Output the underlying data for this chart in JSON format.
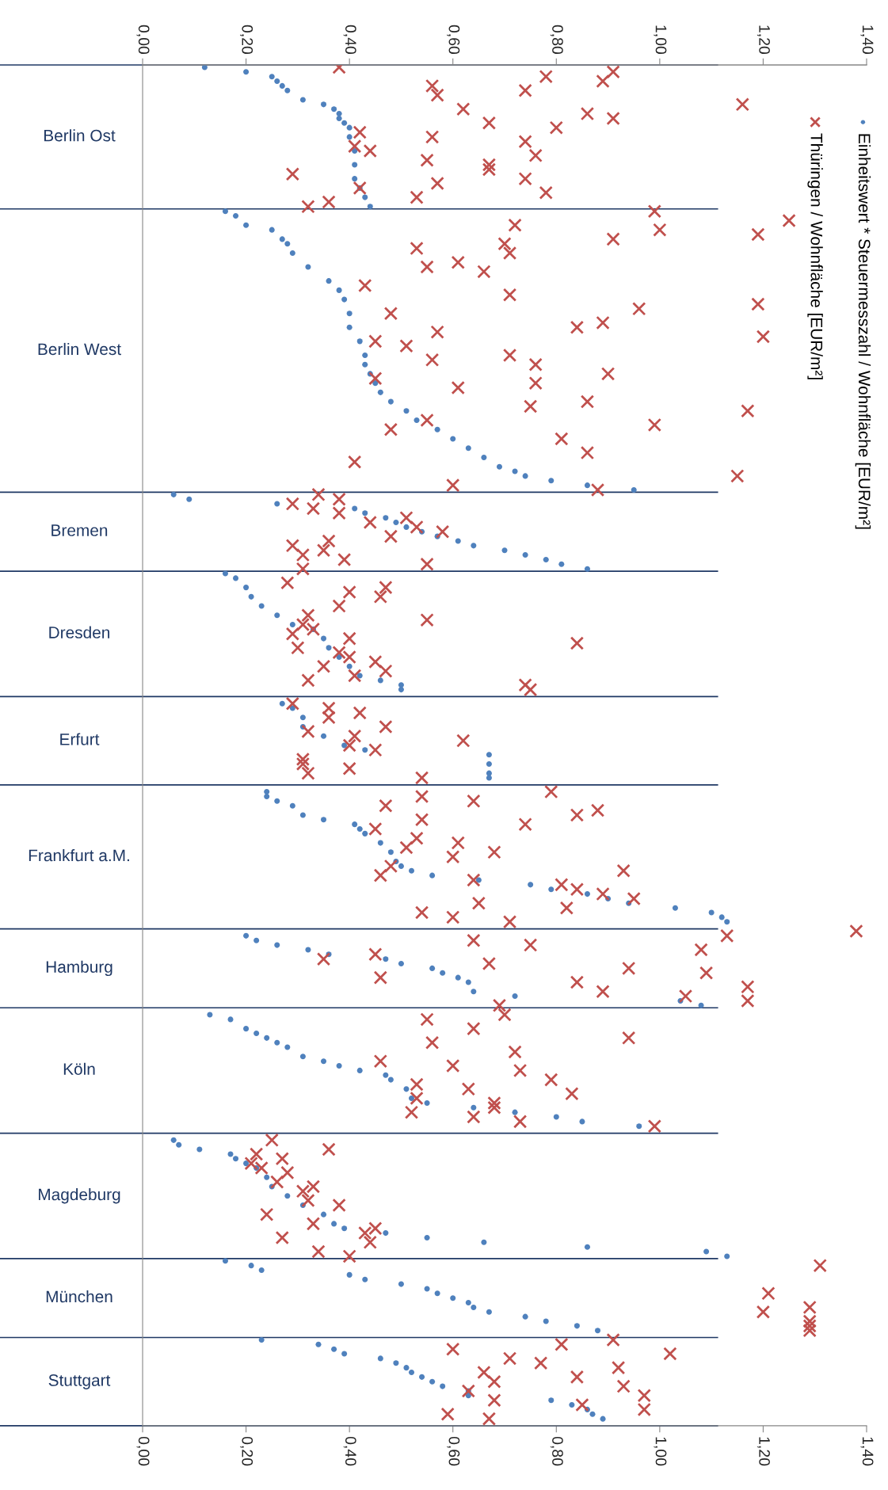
{
  "chart_data": {
    "type": "scatter",
    "orientation": "horizontal",
    "legend": "top right",
    "tick_labels": "x",
    "xlim": [
      0,
      1.4
    ],
    "xticks": [
      {
        "value": 0,
        "label": "0,00"
      },
      {
        "value": 0.2,
        "label": "0,20"
      },
      {
        "value": 0.4,
        "label": "0,40"
      },
      {
        "value": 0.6,
        "label": "0,60"
      },
      {
        "value": 0.8,
        "label": "0,80"
      },
      {
        "value": 1.0,
        "label": "1,00"
      },
      {
        "value": 1.2,
        "label": "1,20"
      },
      {
        "value": 1.4,
        "label": "1,40"
      }
    ],
    "x2lim": [
      0,
      1.4
    ],
    "x2ticks": [
      {
        "value": 0,
        "label": "0,00"
      },
      {
        "value": 0.2,
        "label": "0,20"
      },
      {
        "value": 0.4,
        "label": "0,40"
      },
      {
        "value": 0.6,
        "label": "0,60"
      },
      {
        "value": 0.8,
        "label": "0,80"
      },
      {
        "value": 1.0,
        "label": "1,00"
      },
      {
        "value": 1.2,
        "label": "1,20"
      },
      {
        "value": 1.4,
        "label": "1,40"
      }
    ],
    "categories": [
      null,
      null,
      null,
      null,
      null,
      null,
      null,
      null,
      null,
      null,
      null,
      null,
      null,
      null,
      null,
      "Berlin Ost",
      null,
      null,
      null,
      null,
      null,
      null,
      null,
      null,
      null,
      null,
      null,
      null,
      null,
      null,
      null,
      null,
      null,
      null,
      null,
      null,
      null,
      null,
      null,
      null,
      null,
      null,
      null,
      null,
      null,
      null,
      null,
      null,
      null,
      null,
      null,
      null,
      null,
      null,
      null,
      null,
      null,
      null,
      null,
      null,
      null,
      "Berlin West",
      null,
      null,
      null,
      null,
      null,
      null,
      null,
      null,
      null,
      null,
      null,
      null,
      null,
      null,
      null,
      null,
      null,
      null,
      null,
      null,
      null,
      null,
      null,
      null,
      null,
      null,
      null,
      null,
      null,
      null,
      null,
      null,
      null,
      null,
      null,
      null,
      null,
      null,
      "Bremen",
      null,
      null,
      null,
      null,
      null,
      null,
      null,
      null,
      null,
      null,
      null,
      null,
      null,
      null,
      null,
      null,
      null,
      null,
      null,
      null,
      null,
      "Dresden",
      null,
      null,
      null,
      null,
      null,
      null,
      null,
      null,
      null,
      null,
      null,
      null,
      null,
      null,
      null,
      null,
      null,
      null,
      null,
      null,
      null,
      null,
      "Erfurt",
      null,
      null,
      null,
      null,
      null,
      null,
      null,
      null,
      null,
      null,
      null,
      null,
      null,
      null,
      null,
      null,
      null,
      null,
      null,
      null,
      null,
      null,
      null,
      null,
      "Frankfurt a.M.",
      null,
      null,
      null,
      null,
      null,
      null,
      null,
      null,
      null,
      null,
      null,
      null,
      null,
      null,
      null,
      null,
      null,
      null,
      null,
      null,
      null,
      null,
      null,
      "Hamburg",
      null,
      null,
      null,
      null,
      null,
      null,
      null,
      null,
      null,
      null,
      null,
      null,
      null,
      null,
      null,
      null,
      null,
      null,
      null,
      null,
      null,
      "Köln",
      null,
      null,
      null,
      null,
      null,
      null,
      null,
      null,
      null,
      null,
      null,
      null,
      null,
      null,
      null,
      null,
      null,
      null,
      null,
      null,
      null,
      null,
      null,
      null,
      null,
      null,
      "Magdeburg",
      null,
      null,
      null,
      null,
      null,
      null,
      null,
      null,
      null,
      null,
      null,
      null,
      null,
      null,
      null,
      null,
      null,
      null,
      null,
      null,
      null,
      "München",
      null,
      null,
      null,
      null,
      null,
      null,
      null,
      null,
      null,
      null,
      null,
      null,
      null,
      null,
      null,
      null,
      null,
      "Stuttgart",
      null,
      null,
      null,
      null,
      null,
      null,
      null,
      null,
      null
    ],
    "series": [
      {
        "name": "Einheitswert * Steuermesszahl / Wohnfläche [EUR/m²]",
        "color": "#4f81bd",
        "marker": "circle",
        "values": [
          0.12,
          0.2,
          0.25,
          0.26,
          0.27,
          0.28,
          null,
          0.31,
          0.35,
          0.37,
          0.38,
          0.38,
          0.39,
          0.4,
          null,
          0.4,
          null,
          null,
          0.41,
          null,
          null,
          0.41,
          null,
          null,
          0.41,
          null,
          0.42,
          null,
          0.43,
          null,
          0.44,
          0.16,
          0.18,
          null,
          0.2,
          0.25,
          null,
          0.27,
          0.28,
          null,
          0.29,
          null,
          null,
          0.32,
          null,
          null,
          0.36,
          null,
          0.38,
          null,
          0.39,
          null,
          null,
          0.4,
          null,
          null,
          0.4,
          null,
          null,
          0.42,
          null,
          null,
          0.43,
          null,
          0.43,
          null,
          0.44,
          null,
          0.45,
          null,
          0.46,
          null,
          0.48,
          null,
          0.51,
          null,
          0.53,
          null,
          0.57,
          null,
          0.6,
          null,
          0.63,
          null,
          0.66,
          null,
          0.69,
          0.72,
          0.74,
          0.79,
          0.86,
          0.95,
          0.06,
          0.09,
          0.26,
          0.41,
          0.43,
          0.47,
          0.49,
          0.51,
          0.54,
          0.57,
          0.61,
          0.64,
          0.7,
          0.74,
          0.78,
          0.81,
          0.86,
          0.16,
          0.18,
          null,
          0.2,
          null,
          0.21,
          null,
          0.23,
          null,
          0.26,
          null,
          0.29,
          0.33,
          null,
          0.35,
          null,
          0.36,
          null,
          0.38,
          null,
          0.4,
          null,
          0.42,
          0.46,
          0.5,
          0.5,
          null,
          null,
          0.27,
          0.29,
          null,
          0.31,
          null,
          0.31,
          null,
          0.35,
          null,
          0.39,
          0.43,
          0.67,
          null,
          0.67,
          null,
          0.67,
          0.67,
          null,
          null,
          0.24,
          0.24,
          0.26,
          0.29,
          null,
          0.31,
          0.35,
          0.41,
          0.42,
          0.43,
          null,
          0.46,
          null,
          0.48,
          null,
          0.49,
          0.5,
          0.52,
          0.56,
          0.65,
          0.75,
          0.79,
          0.86,
          0.9,
          0.94,
          1.03,
          1.1,
          1.12,
          1.13,
          null,
          null,
          0.2,
          0.22,
          0.26,
          0.32,
          0.36,
          0.47,
          0.5,
          0.56,
          0.58,
          0.61,
          0.63,
          null,
          0.64,
          0.72,
          1.04,
          1.08,
          null,
          0.13,
          0.17,
          null,
          0.2,
          0.22,
          0.24,
          0.26,
          0.28,
          null,
          0.31,
          0.35,
          0.38,
          0.42,
          0.47,
          0.48,
          null,
          0.51,
          null,
          0.52,
          0.55,
          0.64,
          0.72,
          0.8,
          0.85,
          0.96,
          null,
          null,
          0.06,
          0.07,
          0.11,
          0.17,
          0.18,
          0.2,
          0.22,
          null,
          0.24,
          null,
          0.25,
          null,
          0.28,
          null,
          0.31,
          null,
          0.35,
          null,
          0.37,
          0.39,
          0.47,
          0.55,
          0.66,
          0.86,
          1.09,
          1.13,
          0.16,
          0.21,
          0.23,
          0.4,
          0.43,
          0.5,
          0.55,
          0.57,
          0.6,
          0.63,
          0.64,
          0.67,
          0.74,
          0.78,
          0.84,
          0.88,
          null,
          0.23,
          0.34,
          0.37,
          0.39,
          0.46,
          0.49,
          0.51,
          0.52,
          0.54,
          0.56,
          0.58,
          0.63,
          0.63,
          0.79,
          0.83,
          0.86,
          0.87,
          0.89,
          null
        ]
      },
      {
        "name": "Thüringen / Wohnfläche [EUR/m²]",
        "color": "#c0504d",
        "marker": "cross",
        "values": [
          0.38,
          0.91,
          0.78,
          0.89,
          0.56,
          0.74,
          0.57,
          null,
          1.16,
          0.62,
          0.86,
          0.91,
          0.67,
          0.8,
          0.42,
          0.56,
          0.74,
          0.41,
          0.44,
          0.76,
          0.55,
          0.67,
          0.67,
          0.29,
          0.74,
          0.57,
          0.42,
          0.78,
          0.53,
          0.36,
          0.32,
          0.99,
          null,
          1.25,
          0.72,
          1.0,
          1.19,
          0.91,
          0.7,
          0.53,
          0.71,
          null,
          0.61,
          0.55,
          0.66,
          null,
          null,
          0.43,
          null,
          0.71,
          null,
          1.19,
          0.96,
          0.48,
          null,
          0.89,
          0.84,
          0.57,
          1.2,
          0.45,
          0.51,
          null,
          0.71,
          0.56,
          0.76,
          null,
          0.9,
          0.45,
          0.76,
          0.61,
          null,
          null,
          0.86,
          0.75,
          1.17,
          null,
          0.55,
          0.99,
          0.48,
          null,
          0.81,
          null,
          null,
          0.86,
          null,
          0.41,
          null,
          null,
          1.15,
          null,
          0.6,
          0.88,
          0.34,
          0.38,
          0.29,
          0.33,
          0.38,
          0.51,
          0.44,
          0.53,
          0.58,
          0.48,
          0.36,
          0.29,
          0.35,
          0.31,
          0.39,
          0.55,
          0.31,
          null,
          null,
          0.28,
          0.47,
          0.4,
          0.46,
          null,
          0.38,
          null,
          0.32,
          0.55,
          0.31,
          0.33,
          0.29,
          0.4,
          0.84,
          0.3,
          0.38,
          0.4,
          0.45,
          0.35,
          0.47,
          0.41,
          0.32,
          0.74,
          0.75,
          null,
          null,
          0.29,
          0.36,
          0.42,
          0.36,
          null,
          0.47,
          0.32,
          0.41,
          0.62,
          0.4,
          0.45,
          null,
          0.31,
          0.31,
          0.4,
          0.32,
          0.54,
          null,
          null,
          0.79,
          0.54,
          0.64,
          0.47,
          0.88,
          0.84,
          0.54,
          0.74,
          0.45,
          null,
          0.53,
          0.61,
          0.51,
          0.68,
          0.6,
          null,
          0.48,
          0.93,
          0.46,
          0.64,
          0.81,
          0.84,
          0.89,
          0.95,
          0.65,
          0.82,
          0.54,
          0.6,
          0.71,
          null,
          1.38,
          1.13,
          0.64,
          0.75,
          1.08,
          0.45,
          0.35,
          0.67,
          0.94,
          1.09,
          0.46,
          0.84,
          1.17,
          0.89,
          1.05,
          1.17,
          0.69,
          null,
          0.7,
          0.55,
          null,
          0.64,
          null,
          0.94,
          0.56,
          null,
          0.72,
          null,
          0.46,
          0.6,
          0.73,
          null,
          0.79,
          0.53,
          0.63,
          0.83,
          0.53,
          0.68,
          0.68,
          0.52,
          0.64,
          0.73,
          0.99,
          null,
          null,
          0.25,
          null,
          0.36,
          0.22,
          0.27,
          0.21,
          0.23,
          0.28,
          null,
          0.26,
          0.33,
          0.31,
          null,
          0.32,
          0.38,
          null,
          0.24,
          null,
          0.33,
          0.45,
          0.43,
          0.27,
          0.44,
          null,
          0.34,
          0.4,
          null,
          1.31,
          null,
          null,
          null,
          null,
          null,
          1.21,
          null,
          null,
          1.29,
          1.2,
          null,
          1.29,
          1.29,
          1.29,
          null,
          0.91,
          0.81,
          0.6,
          1.02,
          0.71,
          0.77,
          0.92,
          0.66,
          0.84,
          0.68,
          0.93,
          0.63,
          0.97,
          0.68,
          0.85,
          0.97,
          0.59,
          0.67,
          null
        ]
      }
    ]
  }
}
